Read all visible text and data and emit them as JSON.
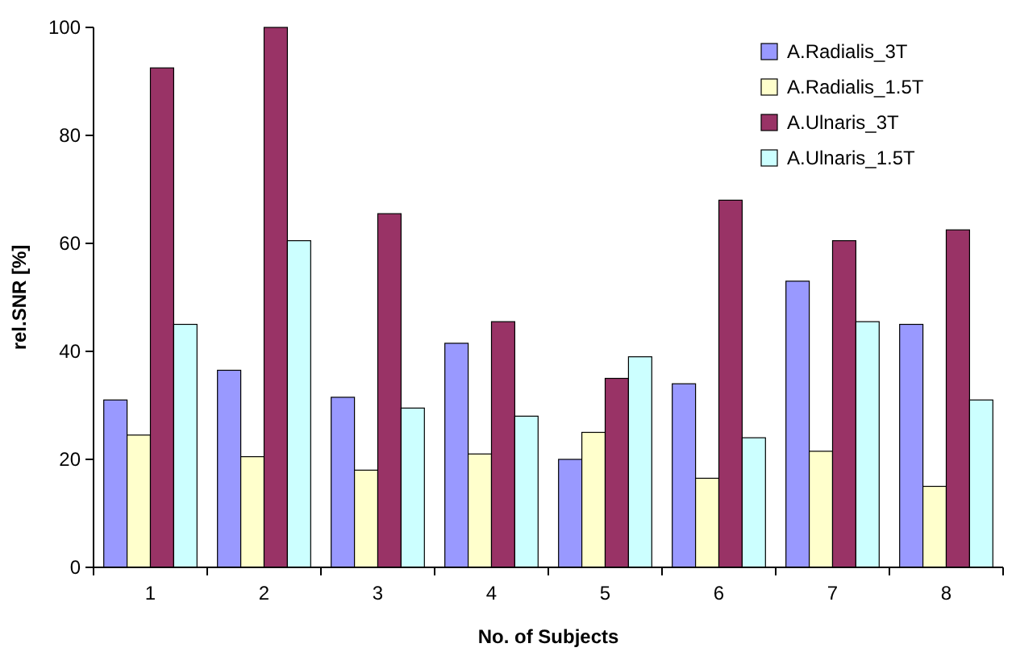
{
  "chart_data": {
    "type": "bar",
    "xlabel": "No. of Subjects",
    "ylabel": "rel.SNR [%]",
    "categories": [
      "1",
      "2",
      "3",
      "4",
      "5",
      "6",
      "7",
      "8"
    ],
    "ylim": [
      0,
      100
    ],
    "yticks": [
      0,
      20,
      40,
      60,
      80,
      100
    ],
    "grid": false,
    "legend": "top right",
    "series": [
      {
        "name": "A.Radialis_3T",
        "color": "#9999ff",
        "values": [
          31,
          36.5,
          31.5,
          41.5,
          20,
          34,
          53,
          45
        ]
      },
      {
        "name": "A.Radialis_1.5T",
        "color": "#ffffcc",
        "values": [
          24.5,
          20.5,
          18,
          21,
          25,
          16.5,
          21.5,
          15
        ]
      },
      {
        "name": "A.Ulnaris_3T",
        "color": "#993366",
        "values": [
          92.5,
          100,
          65.5,
          45.5,
          35,
          68,
          60.5,
          62.5
        ]
      },
      {
        "name": "A.Ulnaris_1.5T",
        "color": "#ccffff",
        "values": [
          45,
          60.5,
          29.5,
          28,
          39,
          24,
          45.5,
          31
        ]
      }
    ]
  }
}
